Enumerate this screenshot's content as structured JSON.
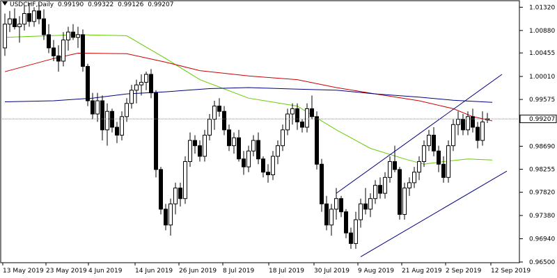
{
  "header": {
    "symbol": "USDCHF,Daily",
    "ohlc": [
      "0.99190",
      "0.99322",
      "0.99126",
      "0.99207"
    ]
  },
  "price_axis": {
    "labels": [
      "1.01320",
      "1.00880",
      "1.00455",
      "1.00010",
      "0.99575",
      "0.98690",
      "0.98255",
      "0.97820",
      "0.97380",
      "0.96940",
      "0.96500"
    ],
    "current_price": "0.99207"
  },
  "time_axis": {
    "labels": [
      "13 May 2019",
      "23 May 2019",
      "4 Jun 2019",
      "14 Jun 2019",
      "26 Jun 2019",
      "8 Jul 2019",
      "18 Jul 2019",
      "30 Jul 2019",
      "9 Aug 2019",
      "21 Aug 2019",
      "2 Sep 2019",
      "12 Sep 2019"
    ]
  },
  "colors": {
    "bull_candle": "#ffffff",
    "bear_candle": "#000000",
    "ma_fast": "#66cc00",
    "ma_mid": "#cc0000",
    "ma_slow": "#000080",
    "channel": "#000080",
    "price_line": "#808080"
  },
  "chart_data": {
    "type": "candlestick",
    "symbol": "USDCHF",
    "timeframe": "Daily",
    "ylim": [
      0.965,
      1.0143
    ],
    "candles": [
      [
        1.0055,
        1.012,
        1.004,
        1.01
      ],
      [
        1.01,
        1.0125,
        1.0085,
        1.011
      ],
      [
        1.011,
        1.013,
        1.009,
        1.0095
      ],
      [
        1.0095,
        1.0115,
        1.0065,
        1.01
      ],
      [
        1.01,
        1.0135,
        1.0088,
        1.012
      ],
      [
        1.012,
        1.014,
        1.0095,
        1.0105
      ],
      [
        1.0105,
        1.0132,
        1.0095,
        1.0125
      ],
      [
        1.0125,
        1.014,
        1.01,
        1.011
      ],
      [
        1.011,
        1.0128,
        1.007,
        1.008
      ],
      [
        1.008,
        1.01,
        1.0045,
        1.0055
      ],
      [
        1.0055,
        1.007,
        1.003,
        1.004
      ],
      [
        1.004,
        1.006,
        1.001,
        1.003
      ],
      [
        1.003,
        1.0085,
        1.002,
        1.007
      ],
      [
        1.007,
        1.0095,
        1.005,
        1.0085
      ],
      [
        1.0085,
        1.01,
        1.007,
        1.0075
      ],
      [
        1.0075,
        1.0095,
        1.0055,
        1.008
      ],
      [
        1.008,
        1.009,
        1.001,
        1.002
      ],
      [
        1.002,
        1.0025,
        0.9945,
        0.9955
      ],
      [
        0.9955,
        0.997,
        0.992,
        0.993
      ],
      [
        0.993,
        0.997,
        0.9915,
        0.9955
      ],
      [
        0.9955,
        0.9965,
        0.988,
        0.99
      ],
      [
        0.99,
        0.995,
        0.987,
        0.9935
      ],
      [
        0.9935,
        0.994,
        0.9895,
        0.9905
      ],
      [
        0.9905,
        0.9915,
        0.9875,
        0.989
      ],
      [
        0.989,
        0.9935,
        0.988,
        0.9925
      ],
      [
        0.9925,
        0.996,
        0.9915,
        0.995
      ],
      [
        0.995,
        0.9985,
        0.994,
        0.9975
      ],
      [
        0.9975,
        0.9995,
        0.995,
        0.9985
      ],
      [
        0.9985,
        1.0005,
        0.9965,
        0.999
      ],
      [
        0.999,
        1.001,
        0.9975,
        1.0005
      ],
      [
        1.0005,
        1.0015,
        0.996,
        0.997
      ],
      [
        0.997,
        0.9975,
        0.981,
        0.9825
      ],
      [
        0.9825,
        0.983,
        0.974,
        0.975
      ],
      [
        0.975,
        0.976,
        0.971,
        0.972
      ],
      [
        0.972,
        0.977,
        0.97,
        0.976
      ],
      [
        0.976,
        0.98,
        0.974,
        0.979
      ],
      [
        0.979,
        0.98,
        0.9755,
        0.977
      ],
      [
        0.977,
        0.985,
        0.976,
        0.984
      ],
      [
        0.984,
        0.9895,
        0.983,
        0.988
      ],
      [
        0.988,
        0.989,
        0.9855,
        0.987
      ],
      [
        0.987,
        0.988,
        0.984,
        0.985
      ],
      [
        0.985,
        0.99,
        0.984,
        0.989
      ],
      [
        0.989,
        0.993,
        0.988,
        0.992
      ],
      [
        0.992,
        0.9955,
        0.99,
        0.9945
      ],
      [
        0.9945,
        0.996,
        0.9925,
        0.9935
      ],
      [
        0.9935,
        0.9945,
        0.989,
        0.99
      ],
      [
        0.99,
        0.991,
        0.986,
        0.987
      ],
      [
        0.987,
        0.9895,
        0.9855,
        0.9885
      ],
      [
        0.9885,
        0.99,
        0.984,
        0.9845
      ],
      [
        0.9845,
        0.986,
        0.9815,
        0.983
      ],
      [
        0.983,
        0.987,
        0.982,
        0.986
      ],
      [
        0.986,
        0.989,
        0.985,
        0.988
      ],
      [
        0.988,
        0.9895,
        0.9835,
        0.9845
      ],
      [
        0.9845,
        0.985,
        0.981,
        0.982
      ],
      [
        0.982,
        0.9835,
        0.98,
        0.9815
      ],
      [
        0.9815,
        0.986,
        0.9805,
        0.985
      ],
      [
        0.985,
        0.988,
        0.9835,
        0.987
      ],
      [
        0.987,
        0.991,
        0.986,
        0.99
      ],
      [
        0.99,
        0.994,
        0.989,
        0.993
      ],
      [
        0.993,
        0.995,
        0.991,
        0.994
      ],
      [
        0.994,
        0.995,
        0.99,
        0.9915
      ],
      [
        0.9915,
        0.992,
        0.9895,
        0.9905
      ],
      [
        0.9905,
        0.995,
        0.9895,
        0.994
      ],
      [
        0.994,
        0.9965,
        0.992,
        0.9925
      ],
      [
        0.9925,
        0.9935,
        0.9825,
        0.9835
      ],
      [
        0.9835,
        0.9845,
        0.9745,
        0.976
      ],
      [
        0.976,
        0.9775,
        0.971,
        0.972
      ],
      [
        0.972,
        0.976,
        0.97,
        0.975
      ],
      [
        0.975,
        0.979,
        0.973,
        0.977
      ],
      [
        0.977,
        0.9775,
        0.9735,
        0.9745
      ],
      [
        0.9745,
        0.975,
        0.9695,
        0.9705
      ],
      [
        0.9705,
        0.9715,
        0.9675,
        0.9685
      ],
      [
        0.9685,
        0.9745,
        0.9675,
        0.973
      ],
      [
        0.973,
        0.977,
        0.9715,
        0.976
      ],
      [
        0.976,
        0.979,
        0.974,
        0.975
      ],
      [
        0.975,
        0.978,
        0.9735,
        0.977
      ],
      [
        0.977,
        0.9805,
        0.976,
        0.9795
      ],
      [
        0.9795,
        0.981,
        0.977,
        0.978
      ],
      [
        0.978,
        0.982,
        0.977,
        0.981
      ],
      [
        0.981,
        0.985,
        0.98,
        0.984
      ],
      [
        0.984,
        0.987,
        0.982,
        0.9825
      ],
      [
        0.9825,
        0.983,
        0.973,
        0.974
      ],
      [
        0.974,
        0.98,
        0.973,
        0.979
      ],
      [
        0.979,
        0.981,
        0.9775,
        0.98
      ],
      [
        0.98,
        0.983,
        0.979,
        0.982
      ],
      [
        0.982,
        0.985,
        0.9805,
        0.984
      ],
      [
        0.984,
        0.988,
        0.983,
        0.987
      ],
      [
        0.987,
        0.99,
        0.986,
        0.989
      ],
      [
        0.989,
        0.9905,
        0.985,
        0.986
      ],
      [
        0.986,
        0.987,
        0.982,
        0.9835
      ],
      [
        0.9835,
        0.985,
        0.98,
        0.981
      ],
      [
        0.981,
        0.988,
        0.98,
        0.987
      ],
      [
        0.987,
        0.992,
        0.986,
        0.991
      ],
      [
        0.991,
        0.9935,
        0.989,
        0.992
      ],
      [
        0.992,
        0.993,
        0.989,
        0.99
      ],
      [
        0.99,
        0.9935,
        0.989,
        0.9925
      ],
      [
        0.9925,
        0.994,
        0.9895,
        0.9905
      ],
      [
        0.9905,
        0.9915,
        0.9865,
        0.988
      ],
      [
        0.988,
        0.9935,
        0.987,
        0.9915
      ],
      [
        0.9919,
        0.9932,
        0.9913,
        0.9921
      ]
    ],
    "moving_averages": [
      {
        "color": "#66cc00",
        "points": [
          [
            0,
            1.0075
          ],
          [
            15,
            1.008
          ],
          [
            25,
            1.0078
          ],
          [
            33,
            1.0035
          ],
          [
            40,
            0.9995
          ],
          [
            50,
            0.996
          ],
          [
            60,
            0.9945
          ],
          [
            68,
            0.99
          ],
          [
            75,
            0.9865
          ],
          [
            82,
            0.9845
          ],
          [
            86,
            0.9835
          ],
          [
            90,
            0.984
          ],
          [
            95,
            0.9845
          ],
          [
            100,
            0.9843
          ]
        ]
      },
      {
        "color": "#cc0000",
        "points": [
          [
            0,
            1.001
          ],
          [
            10,
            1.0035
          ],
          [
            15,
            1.0045
          ],
          [
            25,
            1.0044
          ],
          [
            33,
            1.0028
          ],
          [
            40,
            1.0012
          ],
          [
            50,
            1.0002
          ],
          [
            60,
            0.9995
          ],
          [
            68,
            0.998
          ],
          [
            76,
            0.9968
          ],
          [
            85,
            0.9955
          ],
          [
            92,
            0.994
          ],
          [
            96,
            0.9925
          ],
          [
            100,
            0.9917
          ]
        ]
      },
      {
        "color": "#000080",
        "points": [
          [
            0,
            0.9953
          ],
          [
            10,
            0.9955
          ],
          [
            18,
            0.996
          ],
          [
            25,
            0.9968
          ],
          [
            33,
            0.9972
          ],
          [
            42,
            0.9978
          ],
          [
            50,
            0.998
          ],
          [
            60,
            0.9977
          ],
          [
            68,
            0.9975
          ],
          [
            76,
            0.9968
          ],
          [
            85,
            0.9962
          ],
          [
            92,
            0.9956
          ],
          [
            100,
            0.9952
          ]
        ]
      }
    ],
    "channel_lines": [
      {
        "points": [
          [
            68,
            0.978
          ],
          [
            102,
            1.0005
          ]
        ]
      },
      {
        "points": [
          [
            73,
            0.966
          ],
          [
            103,
            0.9822
          ]
        ]
      }
    ]
  }
}
